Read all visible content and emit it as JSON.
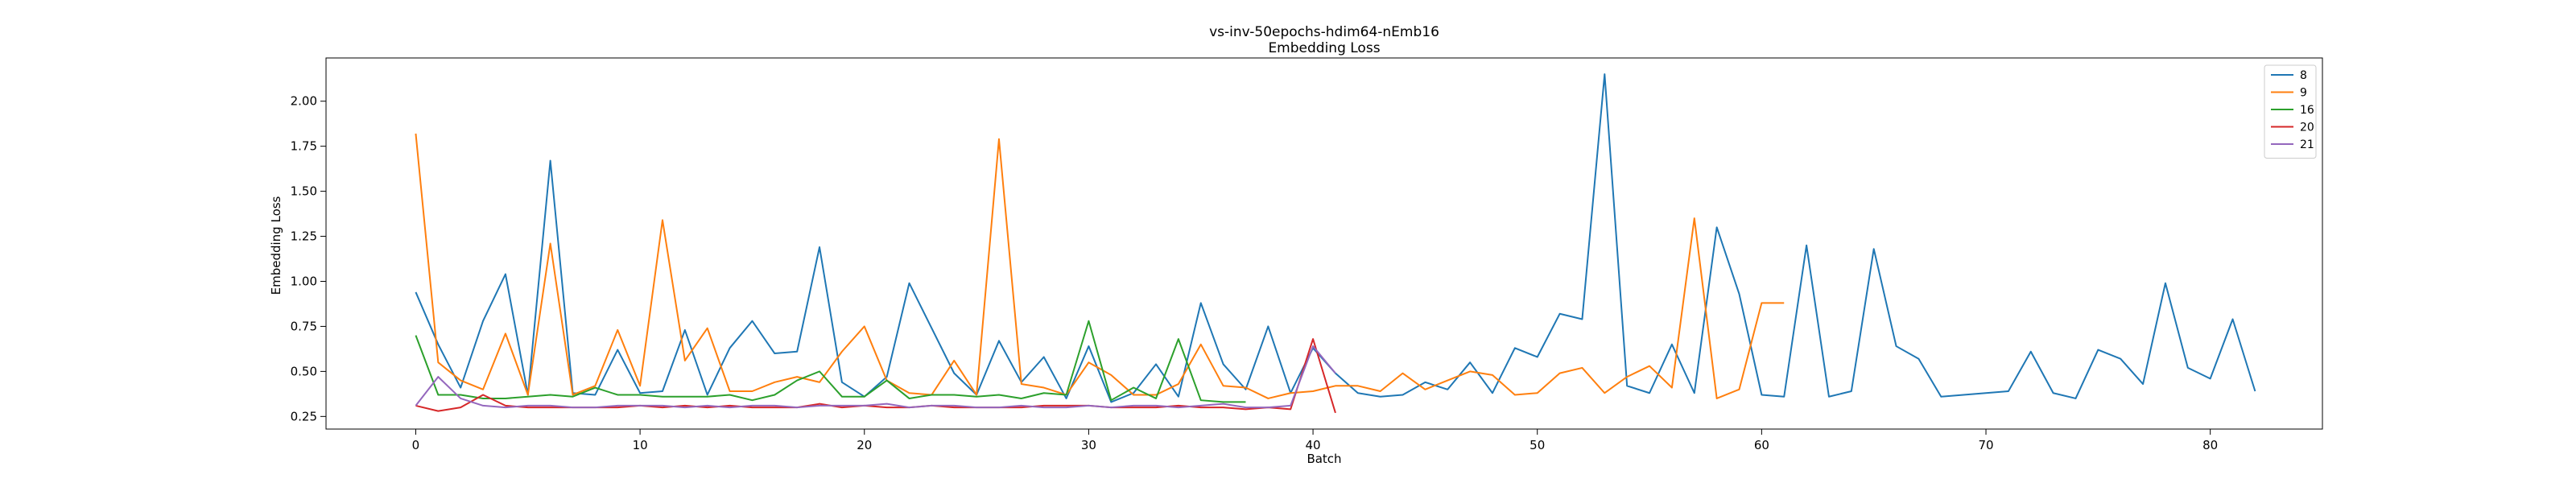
{
  "chart_data": {
    "type": "line",
    "title": "vs-inv-50epochs-hdim64-nEmb16",
    "subtitle": "Embedding Loss",
    "xlabel": "Batch",
    "ylabel": "Embedding Loss",
    "xlim": [
      -4,
      85
    ],
    "ylim": [
      0.18,
      2.24
    ],
    "xticks": [
      0,
      10,
      20,
      30,
      40,
      50,
      60,
      70,
      80
    ],
    "yticks": [
      0.25,
      0.5,
      0.75,
      1.0,
      1.25,
      1.5,
      1.75,
      2.0
    ],
    "ytick_labels": [
      "0.25",
      "0.50",
      "0.75",
      "1.00",
      "1.25",
      "1.50",
      "1.75",
      "2.00"
    ],
    "grid": false,
    "legend_position": "top-right",
    "series": [
      {
        "name": "8",
        "color": "#1f77b4",
        "values": [
          0.94,
          0.65,
          0.41,
          0.78,
          1.04,
          0.37,
          1.67,
          0.38,
          0.37,
          0.62,
          0.38,
          0.39,
          0.73,
          0.37,
          0.63,
          0.78,
          0.6,
          0.61,
          1.19,
          0.44,
          0.36,
          0.47,
          0.99,
          0.74,
          0.49,
          0.37,
          0.67,
          0.44,
          0.58,
          0.35,
          0.64,
          0.33,
          0.38,
          0.54,
          0.36,
          0.88,
          0.54,
          0.4,
          0.75,
          0.38,
          0.63,
          0.49,
          0.38,
          0.36,
          0.37,
          0.44,
          0.4,
          0.55,
          0.38,
          0.63,
          0.58,
          0.82,
          0.79,
          2.15,
          0.42,
          0.38,
          0.65,
          0.38,
          1.3,
          0.93,
          0.37,
          0.36,
          1.2,
          0.36,
          0.39,
          1.18,
          0.64,
          0.57,
          0.36,
          0.37,
          0.38,
          0.39,
          0.61,
          0.38,
          0.35,
          0.62,
          0.57,
          0.43,
          0.99,
          0.52,
          0.46,
          0.79,
          0.39
        ]
      },
      {
        "name": "9",
        "color": "#ff7f0e",
        "values": [
          1.82,
          0.55,
          0.45,
          0.4,
          0.71,
          0.37,
          1.21,
          0.37,
          0.42,
          0.73,
          0.42,
          1.34,
          0.56,
          0.74,
          0.39,
          0.39,
          0.44,
          0.47,
          0.44,
          0.61,
          0.75,
          0.45,
          0.38,
          0.37,
          0.56,
          0.37,
          1.79,
          0.43,
          0.41,
          0.37,
          0.55,
          0.48,
          0.37,
          0.37,
          0.43,
          0.65,
          0.42,
          0.41,
          0.35,
          0.38,
          0.39,
          0.42,
          0.42,
          0.39,
          0.49,
          0.4,
          0.45,
          0.5,
          0.48,
          0.37,
          0.38,
          0.49,
          0.52,
          0.38,
          0.47,
          0.53,
          0.41,
          1.35,
          0.35,
          0.4,
          0.88,
          0.88
        ]
      },
      {
        "name": "16",
        "color": "#2ca02c",
        "values": [
          0.7,
          0.37,
          0.37,
          0.35,
          0.35,
          0.36,
          0.37,
          0.36,
          0.41,
          0.37,
          0.37,
          0.36,
          0.36,
          0.36,
          0.37,
          0.34,
          0.37,
          0.45,
          0.5,
          0.36,
          0.36,
          0.45,
          0.35,
          0.37,
          0.37,
          0.36,
          0.37,
          0.35,
          0.38,
          0.37,
          0.78,
          0.34,
          0.41,
          0.35,
          0.68,
          0.34,
          0.33,
          0.33
        ]
      },
      {
        "name": "20",
        "color": "#d62728",
        "values": [
          0.31,
          0.28,
          0.3,
          0.37,
          0.31,
          0.3,
          0.3,
          0.3,
          0.3,
          0.3,
          0.31,
          0.3,
          0.31,
          0.3,
          0.31,
          0.3,
          0.3,
          0.3,
          0.32,
          0.3,
          0.31,
          0.3,
          0.3,
          0.31,
          0.3,
          0.3,
          0.3,
          0.3,
          0.31,
          0.31,
          0.31,
          0.3,
          0.3,
          0.3,
          0.31,
          0.3,
          0.3,
          0.29,
          0.3,
          0.29,
          0.68,
          0.27
        ]
      },
      {
        "name": "21",
        "color": "#9467bd",
        "values": [
          0.31,
          0.47,
          0.35,
          0.31,
          0.3,
          0.31,
          0.31,
          0.3,
          0.3,
          0.31,
          0.31,
          0.31,
          0.3,
          0.31,
          0.3,
          0.31,
          0.31,
          0.3,
          0.31,
          0.31,
          0.31,
          0.32,
          0.3,
          0.31,
          0.31,
          0.3,
          0.3,
          0.31,
          0.3,
          0.3,
          0.31,
          0.3,
          0.31,
          0.31,
          0.3,
          0.31,
          0.32,
          0.3,
          0.3,
          0.31,
          0.64,
          0.49
        ]
      }
    ]
  }
}
